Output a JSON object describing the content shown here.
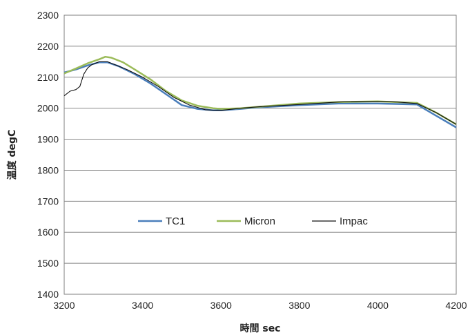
{
  "chart_data": {
    "type": "line",
    "title": "",
    "xlabel": "時間 sec",
    "ylabel": "温度 degC",
    "xlim": [
      3200,
      4200
    ],
    "ylim": [
      1400,
      2300
    ],
    "xticks": [
      3200,
      3400,
      3600,
      3800,
      4000,
      4200
    ],
    "yticks": [
      1400,
      1500,
      1600,
      1700,
      1800,
      1900,
      2000,
      2100,
      2200,
      2300
    ],
    "grid": "horizontal",
    "legend_position": "center",
    "series": [
      {
        "name": "TC1",
        "color": "#4a7ebb",
        "x": [
          3200,
          3230,
          3260,
          3290,
          3310,
          3340,
          3380,
          3420,
          3460,
          3500,
          3540,
          3580,
          3600,
          3650,
          3700,
          3800,
          3900,
          4000,
          4100,
          4150,
          4200
        ],
        "y": [
          2115,
          2125,
          2138,
          2148,
          2148,
          2135,
          2110,
          2080,
          2045,
          2010,
          1998,
          1993,
          1993,
          1998,
          2003,
          2010,
          2015,
          2015,
          2012,
          1975,
          1938
        ]
      },
      {
        "name": "Micron",
        "color": "#9bbb59",
        "x": [
          3200,
          3230,
          3260,
          3290,
          3305,
          3320,
          3350,
          3380,
          3420,
          3460,
          3500,
          3540,
          3580,
          3600,
          3650,
          3700,
          3800,
          3900,
          4000,
          4100,
          4150,
          4200
        ],
        "y": [
          2112,
          2128,
          2145,
          2158,
          2166,
          2163,
          2148,
          2125,
          2093,
          2055,
          2025,
          2008,
          2000,
          1998,
          2000,
          2005,
          2015,
          2020,
          2022,
          2017,
          1985,
          1948
        ]
      },
      {
        "name": "Impac",
        "color": "#111111",
        "x": [
          3200,
          3215,
          3230,
          3240,
          3250,
          3260,
          3270,
          3290,
          3310,
          3330,
          3360,
          3400,
          3440,
          3480,
          3520,
          3560,
          3600,
          3650,
          3700,
          3800,
          3900,
          3950,
          4000,
          4050,
          4100,
          4150,
          4200
        ],
        "y": [
          2040,
          2055,
          2060,
          2070,
          2110,
          2130,
          2140,
          2150,
          2150,
          2140,
          2125,
          2100,
          2070,
          2035,
          2010,
          1995,
          1993,
          2000,
          2005,
          2012,
          2020,
          2022,
          2022,
          2020,
          2015,
          1985,
          1948
        ]
      }
    ]
  }
}
